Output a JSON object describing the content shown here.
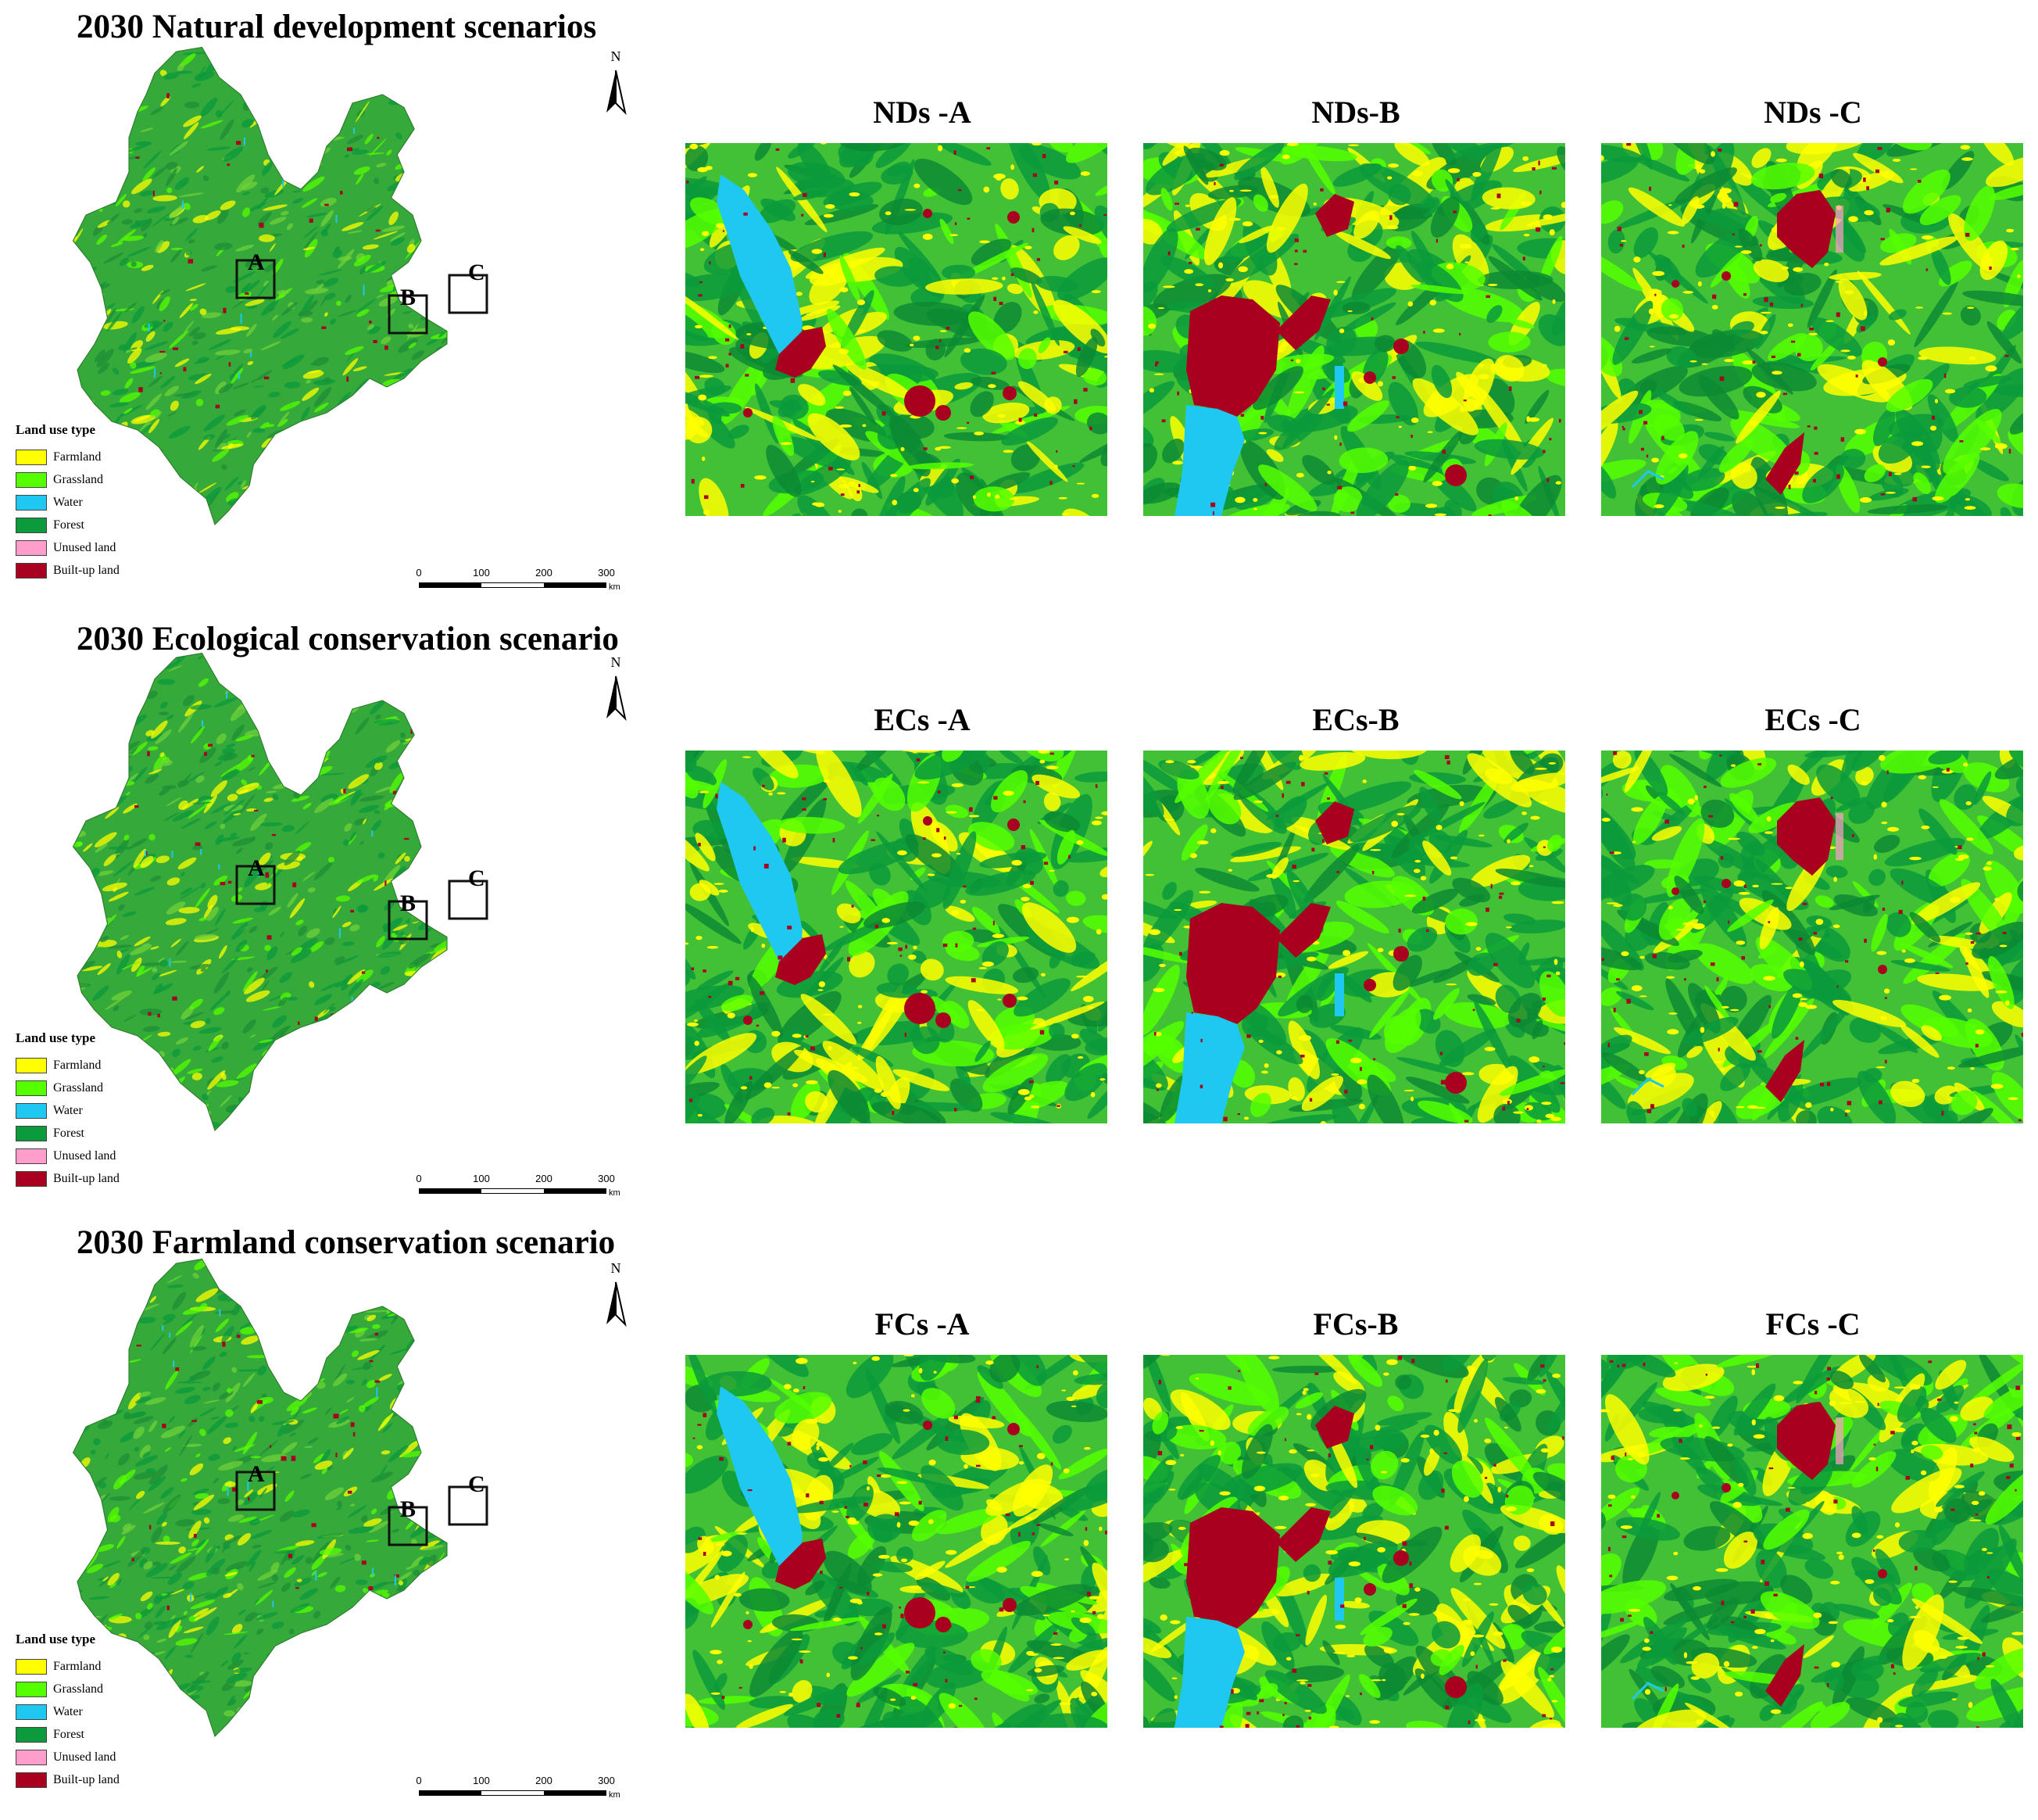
{
  "colors": {
    "farmland": "#ffff00",
    "grassland": "#55ff00",
    "water": "#1ec8f0",
    "forest": "#0b9a3c",
    "unused": "#ff9ecb",
    "builtup": "#a8001e"
  },
  "legend": {
    "title": "Land use type",
    "items": [
      {
        "key": "farmland",
        "label": "Farmland"
      },
      {
        "key": "grassland",
        "label": "Grassland"
      },
      {
        "key": "water",
        "label": "Water"
      },
      {
        "key": "forest",
        "label": "Forest"
      },
      {
        "key": "unused",
        "label": "Unused land"
      },
      {
        "key": "builtup",
        "label": "Built-up land"
      }
    ]
  },
  "scale": {
    "ticks": [
      "0",
      "100",
      "200",
      "300"
    ],
    "unit": "km"
  },
  "north_label": "N",
  "box_labels": [
    "A",
    "B",
    "C"
  ],
  "scenarios": [
    {
      "title": "2030 Natural development scenarios",
      "panels": [
        "NDs -A",
        "NDs-B",
        "NDs -C"
      ]
    },
    {
      "title": "2030 Ecological conservation scenario",
      "panels": [
        "ECs -A",
        "ECs-B",
        "ECs -C"
      ]
    },
    {
      "title": "2030 Farmland conservation scenario",
      "panels": [
        "FCs -A",
        "FCs-B",
        "FCs -C"
      ]
    }
  ]
}
